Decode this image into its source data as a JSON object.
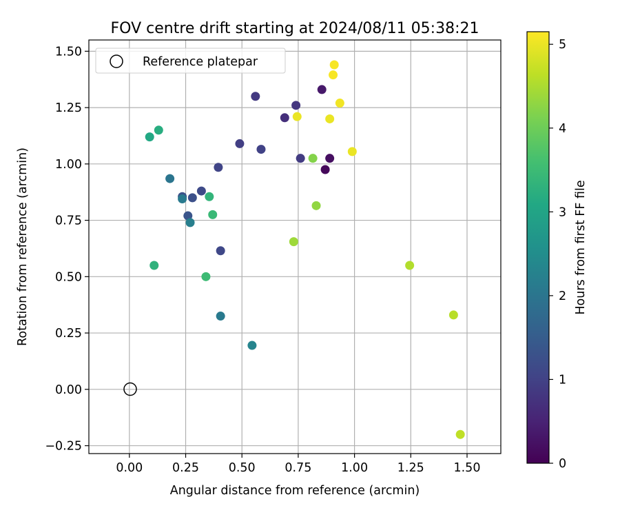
{
  "chart_data": {
    "type": "scatter",
    "title": "FOV centre drift starting at 2024/08/11 05:38:21",
    "xlabel": "Angular distance from reference (arcmin)",
    "ylabel": "Rotation from reference (arcmin)",
    "xlim": [
      -0.18,
      1.65
    ],
    "ylim": [
      -0.285,
      1.55
    ],
    "x_ticks": [
      0.0,
      0.25,
      0.5,
      0.75,
      1.0,
      1.25,
      1.5
    ],
    "x_tick_labels": [
      "0.00",
      "0.25",
      "0.50",
      "0.75",
      "1.00",
      "1.25",
      "1.50"
    ],
    "y_ticks": [
      -0.25,
      0.0,
      0.25,
      0.5,
      0.75,
      1.0,
      1.25,
      1.5
    ],
    "y_tick_labels": [
      "−0.25",
      "0.00",
      "0.25",
      "0.50",
      "0.75",
      "1.00",
      "1.25",
      "1.50"
    ],
    "grid": true,
    "legend": {
      "placement": "upper-left",
      "entries": [
        {
          "label": "Reference platepar",
          "marker": "open-circle"
        }
      ]
    },
    "reference_point": {
      "x": 0.0,
      "y": 0.0
    },
    "colorbar": {
      "label": "Hours from first FF file",
      "colormap": "viridis",
      "range": [
        0,
        5.15
      ],
      "ticks": [
        0,
        1,
        2,
        3,
        4,
        5
      ],
      "tick_labels": [
        "0",
        "1",
        "2",
        "3",
        "4",
        "5"
      ]
    },
    "series": [
      {
        "points": [
          {
            "x": 0.87,
            "y": 0.975,
            "hours": 0.1
          },
          {
            "x": 0.89,
            "y": 1.025,
            "hours": 0.2
          },
          {
            "x": 0.855,
            "y": 1.33,
            "hours": 0.35
          },
          {
            "x": 0.69,
            "y": 1.205,
            "hours": 0.7
          },
          {
            "x": 0.74,
            "y": 1.26,
            "hours": 0.8
          },
          {
            "x": 0.56,
            "y": 1.3,
            "hours": 0.85
          },
          {
            "x": 0.76,
            "y": 1.025,
            "hours": 0.9
          },
          {
            "x": 0.49,
            "y": 1.09,
            "hours": 0.95
          },
          {
            "x": 0.585,
            "y": 1.065,
            "hours": 1.0
          },
          {
            "x": 0.395,
            "y": 0.985,
            "hours": 1.05
          },
          {
            "x": 0.405,
            "y": 0.615,
            "hours": 1.1
          },
          {
            "x": 0.32,
            "y": 0.88,
            "hours": 1.15
          },
          {
            "x": 0.28,
            "y": 0.85,
            "hours": 1.25
          },
          {
            "x": 0.235,
            "y": 0.855,
            "hours": 1.3
          },
          {
            "x": 0.26,
            "y": 0.77,
            "hours": 1.35
          },
          {
            "x": 0.18,
            "y": 0.935,
            "hours": 2.0
          },
          {
            "x": 0.235,
            "y": 0.845,
            "hours": 2.1
          },
          {
            "x": 0.27,
            "y": 0.74,
            "hours": 2.2
          },
          {
            "x": 0.405,
            "y": 0.325,
            "hours": 2.1
          },
          {
            "x": 0.545,
            "y": 0.195,
            "hours": 2.3
          },
          {
            "x": 0.09,
            "y": 1.12,
            "hours": 3.1
          },
          {
            "x": 0.13,
            "y": 1.15,
            "hours": 3.2
          },
          {
            "x": 0.11,
            "y": 0.55,
            "hours": 3.3
          },
          {
            "x": 0.355,
            "y": 0.855,
            "hours": 3.35
          },
          {
            "x": 0.37,
            "y": 0.775,
            "hours": 3.45
          },
          {
            "x": 0.34,
            "y": 0.5,
            "hours": 3.5
          },
          {
            "x": 0.815,
            "y": 1.025,
            "hours": 4.2
          },
          {
            "x": 0.83,
            "y": 0.815,
            "hours": 4.3
          },
          {
            "x": 0.73,
            "y": 0.655,
            "hours": 4.4
          },
          {
            "x": 1.245,
            "y": 0.55,
            "hours": 4.55
          },
          {
            "x": 1.44,
            "y": 0.33,
            "hours": 4.6
          },
          {
            "x": 1.47,
            "y": -0.2,
            "hours": 4.65
          },
          {
            "x": 0.745,
            "y": 1.21,
            "hours": 5.0
          },
          {
            "x": 0.89,
            "y": 1.2,
            "hours": 5.0
          },
          {
            "x": 0.99,
            "y": 1.055,
            "hours": 5.0
          },
          {
            "x": 0.935,
            "y": 1.27,
            "hours": 5.05
          },
          {
            "x": 0.905,
            "y": 1.395,
            "hours": 5.1
          },
          {
            "x": 0.91,
            "y": 1.44,
            "hours": 5.1
          }
        ]
      }
    ]
  }
}
